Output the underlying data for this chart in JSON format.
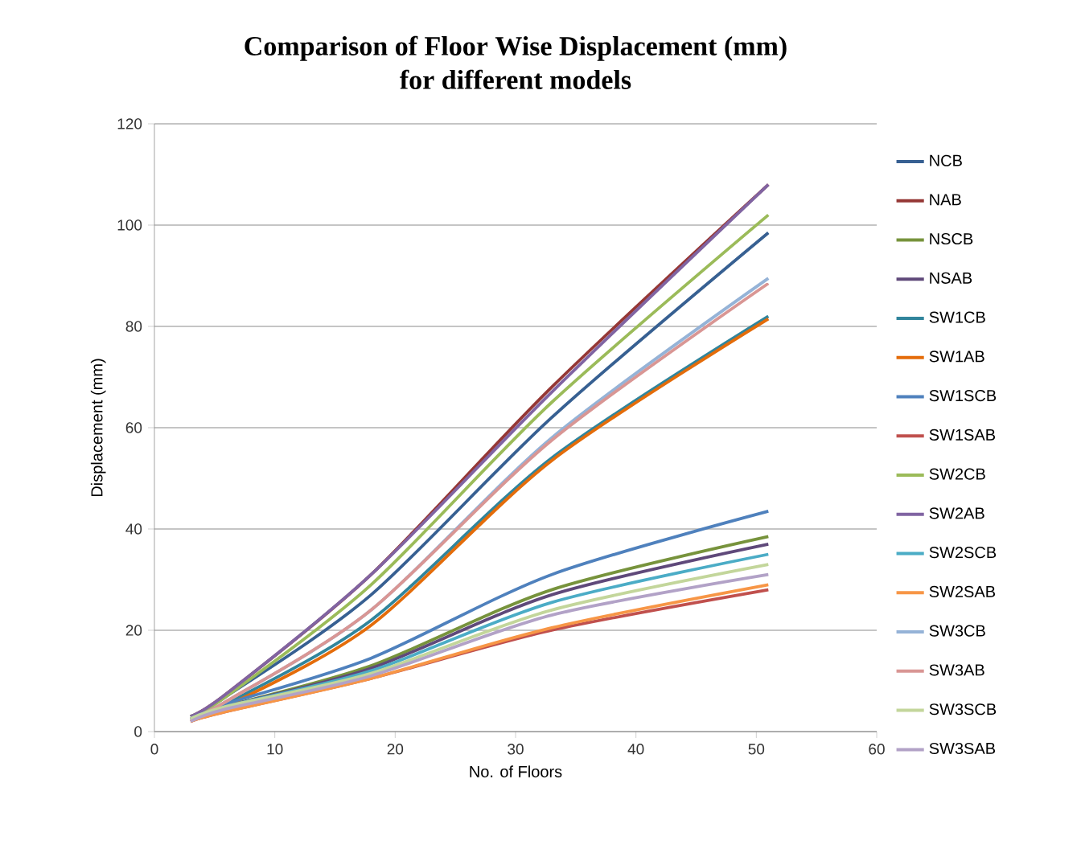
{
  "chart_data": {
    "type": "line",
    "title": "Comparison of Floor Wise Displacement (mm)",
    "subtitle": "for different models",
    "xlabel": "No. of Floors",
    "ylabel": "Displacement (mm)",
    "x": [
      3,
      6,
      18,
      33,
      51
    ],
    "series": [
      {
        "name": "NCB",
        "color": "#376092",
        "values": [
          3,
          7,
          27,
          62,
          98.5
        ]
      },
      {
        "name": "NAB",
        "color": "#953735",
        "values": [
          3,
          7.5,
          31,
          68,
          108
        ]
      },
      {
        "name": "NSCB",
        "color": "#77933c",
        "values": [
          2.5,
          5,
          13,
          28,
          38.5
        ]
      },
      {
        "name": "NSAB",
        "color": "#5f497a",
        "values": [
          2.5,
          5,
          12.5,
          27,
          37
        ]
      },
      {
        "name": "SW1CB",
        "color": "#31859c",
        "values": [
          2.5,
          5.5,
          22,
          54,
          82
        ]
      },
      {
        "name": "SW1AB",
        "color": "#e46c0a",
        "values": [
          2.5,
          5,
          21,
          53.5,
          81.5
        ]
      },
      {
        "name": "SW1SCB",
        "color": "#4f81bd",
        "values": [
          2.5,
          5.5,
          14.5,
          31,
          43.5
        ]
      },
      {
        "name": "SW1SAB",
        "color": "#c0504d",
        "values": [
          2,
          4,
          10.5,
          20,
          28
        ]
      },
      {
        "name": "SW2CB",
        "color": "#9bbb59",
        "values": [
          3,
          7,
          29,
          65,
          102
        ]
      },
      {
        "name": "SW2AB",
        "color": "#8064a2",
        "values": [
          3,
          7.5,
          31,
          67,
          108
        ]
      },
      {
        "name": "SW2SCB",
        "color": "#4bacc6",
        "values": [
          2.5,
          5,
          12,
          25.5,
          35
        ]
      },
      {
        "name": "SW2SAB",
        "color": "#f79646",
        "values": [
          2,
          4,
          10.5,
          20.5,
          29
        ]
      },
      {
        "name": "SW3CB",
        "color": "#95b3d7",
        "values": [
          2.5,
          6,
          24,
          58,
          89.5
        ]
      },
      {
        "name": "SW3AB",
        "color": "#d99694",
        "values": [
          2.5,
          6,
          24,
          57.5,
          88.5
        ]
      },
      {
        "name": "SW3SCB",
        "color": "#c3d69b",
        "values": [
          2.5,
          5,
          11.5,
          24,
          33
        ]
      },
      {
        "name": "SW3SAB",
        "color": "#b2a2c7",
        "values": [
          2,
          4.5,
          11,
          23,
          31
        ]
      }
    ],
    "xlim": [
      0,
      60
    ],
    "xticks": [
      0,
      10,
      20,
      30,
      40,
      50,
      60
    ],
    "ylim": [
      0,
      120
    ],
    "yticks": [
      0,
      20,
      40,
      60,
      80,
      100,
      120
    ],
    "grid": "y",
    "legend": "right",
    "line_style": "solid",
    "marker": "none"
  }
}
